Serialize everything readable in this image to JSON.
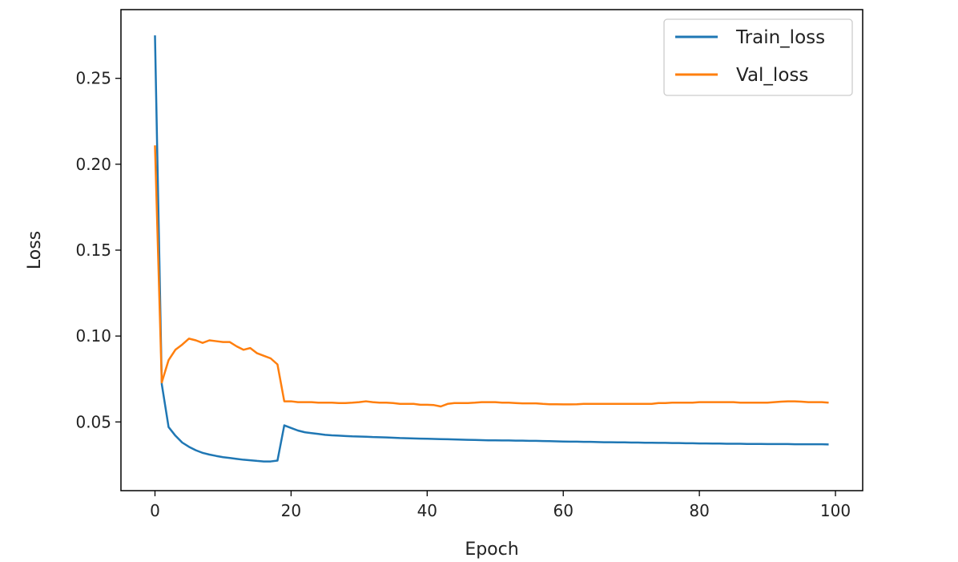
{
  "chart_data": {
    "type": "line",
    "title": "",
    "xlabel": "Epoch",
    "ylabel": "Loss",
    "xlim": [
      -5,
      104
    ],
    "ylim": [
      0.01,
      0.29
    ],
    "xticks": [
      "0",
      "20",
      "40",
      "60",
      "80",
      "100"
    ],
    "yticks": [
      "0.05",
      "0.10",
      "0.15",
      "0.20",
      "0.25"
    ],
    "legend_position": "top-right",
    "grid": false,
    "x": [
      0,
      1,
      2,
      3,
      4,
      5,
      6,
      7,
      8,
      9,
      10,
      11,
      12,
      13,
      14,
      15,
      16,
      17,
      18,
      19,
      20,
      21,
      22,
      23,
      24,
      25,
      26,
      27,
      28,
      29,
      30,
      31,
      32,
      33,
      34,
      35,
      36,
      37,
      38,
      39,
      40,
      41,
      42,
      43,
      44,
      45,
      46,
      47,
      48,
      49,
      50,
      51,
      52,
      53,
      54,
      55,
      56,
      57,
      58,
      59,
      60,
      61,
      62,
      63,
      64,
      65,
      66,
      67,
      68,
      69,
      70,
      71,
      72,
      73,
      74,
      75,
      76,
      77,
      78,
      79,
      80,
      81,
      82,
      83,
      84,
      85,
      86,
      87,
      88,
      89,
      90,
      91,
      92,
      93,
      94,
      95,
      96,
      97,
      98,
      99
    ],
    "series": [
      {
        "name": "Train_loss",
        "color": "#1f77b4",
        "values": [
          0.275,
          0.072,
          0.047,
          0.042,
          0.038,
          0.0355,
          0.0335,
          0.032,
          0.031,
          0.0302,
          0.0295,
          0.029,
          0.0285,
          0.028,
          0.0277,
          0.0273,
          0.027,
          0.027,
          0.0275,
          0.048,
          0.0465,
          0.045,
          0.044,
          0.0435,
          0.043,
          0.0425,
          0.0422,
          0.042,
          0.0418,
          0.0416,
          0.0415,
          0.0414,
          0.0412,
          0.0411,
          0.041,
          0.0408,
          0.0406,
          0.0405,
          0.0404,
          0.0403,
          0.0402,
          0.0401,
          0.04,
          0.0399,
          0.0398,
          0.0397,
          0.0396,
          0.0395,
          0.0394,
          0.0393,
          0.0393,
          0.0392,
          0.0392,
          0.0391,
          0.0391,
          0.039,
          0.039,
          0.0389,
          0.0388,
          0.0387,
          0.0386,
          0.0385,
          0.0385,
          0.0384,
          0.0384,
          0.0383,
          0.0382,
          0.0382,
          0.0381,
          0.0381,
          0.038,
          0.038,
          0.0379,
          0.0379,
          0.0378,
          0.0378,
          0.0377,
          0.0377,
          0.0376,
          0.0376,
          0.0375,
          0.0375,
          0.0374,
          0.0374,
          0.0373,
          0.0373,
          0.0373,
          0.0372,
          0.0372,
          0.0372,
          0.0371,
          0.0371,
          0.0371,
          0.0371,
          0.037,
          0.037,
          0.037,
          0.037,
          0.037,
          0.0369
        ]
      },
      {
        "name": "Val_loss",
        "color": "#ff7f0e",
        "values": [
          0.211,
          0.073,
          0.086,
          0.092,
          0.095,
          0.0985,
          0.0975,
          0.096,
          0.0975,
          0.097,
          0.0965,
          0.0965,
          0.094,
          0.092,
          0.093,
          0.09,
          0.0885,
          0.087,
          0.0835,
          0.062,
          0.062,
          0.0615,
          0.0615,
          0.0615,
          0.0612,
          0.0612,
          0.0612,
          0.061,
          0.061,
          0.0612,
          0.0615,
          0.062,
          0.0615,
          0.0612,
          0.0612,
          0.061,
          0.0605,
          0.0605,
          0.0605,
          0.06,
          0.06,
          0.0598,
          0.059,
          0.0605,
          0.061,
          0.061,
          0.061,
          0.0612,
          0.0615,
          0.0615,
          0.0615,
          0.0612,
          0.0612,
          0.061,
          0.0608,
          0.0608,
          0.0608,
          0.0605,
          0.0603,
          0.0603,
          0.0602,
          0.0602,
          0.0603,
          0.0605,
          0.0605,
          0.0605,
          0.0605,
          0.0605,
          0.0605,
          0.0605,
          0.0605,
          0.0605,
          0.0605,
          0.0605,
          0.061,
          0.061,
          0.0612,
          0.0612,
          0.0612,
          0.0612,
          0.0615,
          0.0615,
          0.0615,
          0.0615,
          0.0615,
          0.0615,
          0.0612,
          0.0612,
          0.0612,
          0.0612,
          0.0612,
          0.0615,
          0.0618,
          0.062,
          0.062,
          0.0618,
          0.0615,
          0.0615,
          0.0615,
          0.0612
        ]
      }
    ]
  }
}
